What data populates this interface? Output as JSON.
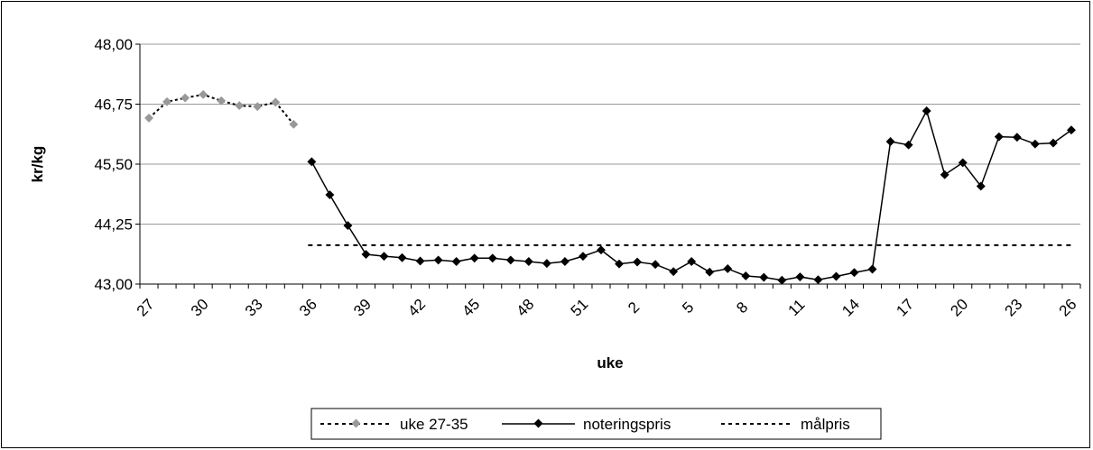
{
  "chart_data": {
    "type": "line",
    "xlabel": "uke",
    "ylabel": "kr/kg",
    "ylim": [
      43.0,
      48.0
    ],
    "y_ticks": [
      "43,00",
      "44,25",
      "45,50",
      "46,75",
      "48,00"
    ],
    "x_ticks": [
      "27",
      "30",
      "33",
      "36",
      "39",
      "42",
      "45",
      "48",
      "51",
      "2",
      "5",
      "8",
      "11",
      "14",
      "17",
      "20",
      "23",
      "26"
    ],
    "grid": "horizontal",
    "legend_position": "bottom",
    "colors": {
      "uke_27_35": "#999999",
      "noteringspris": "#000000",
      "malpris": "#000000",
      "grid": "#999999"
    },
    "series": [
      {
        "name": "uke 27-35",
        "style": "dotted-gray-diamond",
        "x": [
          "27",
          "28",
          "29",
          "30",
          "31",
          "32",
          "33",
          "34",
          "35",
          "36"
        ],
        "values": [
          46.46,
          46.8,
          46.88,
          46.95,
          46.82,
          46.72,
          46.7,
          46.79,
          46.33,
          null
        ]
      },
      {
        "name": "noteringspris",
        "style": "solid-black-diamond",
        "x": [
          "36",
          "37",
          "38",
          "39",
          "40",
          "41",
          "42",
          "43",
          "44",
          "45",
          "46",
          "47",
          "48",
          "49",
          "50",
          "51",
          "52",
          "1",
          "2",
          "3",
          "4",
          "5",
          "6",
          "7",
          "8",
          "9",
          "10",
          "11",
          "12",
          "13",
          "14",
          "15",
          "16",
          "17",
          "18",
          "19",
          "20",
          "21",
          "22",
          "23",
          "24",
          "25",
          "26"
        ],
        "values": [
          45.55,
          44.86,
          44.22,
          43.62,
          43.58,
          43.55,
          43.48,
          43.5,
          43.47,
          43.54,
          43.54,
          43.5,
          43.47,
          43.43,
          43.47,
          43.58,
          43.71,
          43.42,
          43.46,
          43.41,
          43.26,
          43.47,
          43.25,
          43.32,
          43.17,
          43.14,
          43.08,
          43.15,
          43.09,
          43.16,
          43.24,
          43.31,
          45.97,
          45.9,
          46.61,
          45.28,
          45.53,
          45.04,
          46.07,
          46.06,
          45.92,
          45.94,
          46.21
        ]
      },
      {
        "name": "målpris",
        "style": "dashed-black",
        "x": [
          "36",
          "26"
        ],
        "values": [
          43.81,
          43.81
        ]
      }
    ]
  }
}
